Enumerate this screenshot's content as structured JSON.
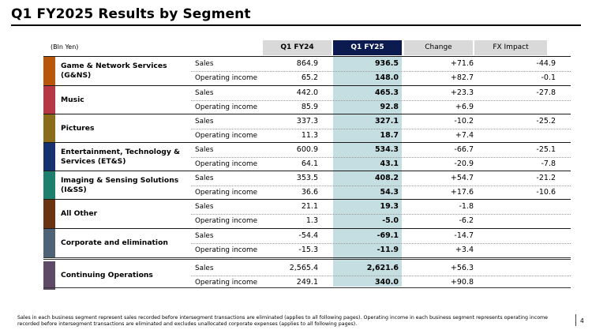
{
  "title": "Q1 FY2025 Results by Segment",
  "unit": "(Bln Yen)",
  "headers": {
    "fy24": "Q1 FY24",
    "fy25": "Q1 FY25",
    "change": "Change",
    "fx": "FX Impact"
  },
  "segments": [
    {
      "name": "Game & Network Services (G&NS)",
      "color": "#b8560b",
      "rows": [
        {
          "label": "Sales",
          "fy24": "864.9",
          "fy25": "936.5",
          "change": "+71.6",
          "fx": "-44.9"
        },
        {
          "label": "Operating income",
          "fy24": "65.2",
          "fy25": "148.0",
          "change": "+82.7",
          "fx": "-0.1"
        }
      ]
    },
    {
      "name": "Music",
      "color": "#b63746",
      "rows": [
        {
          "label": "Sales",
          "fy24": "442.0",
          "fy25": "465.3",
          "change": "+23.3",
          "fx": "-27.8"
        },
        {
          "label": "Operating income",
          "fy24": "85.9",
          "fy25": "92.8",
          "change": "+6.9",
          "fx": ""
        }
      ]
    },
    {
      "name": "Pictures",
      "color": "#8a6d1b",
      "rows": [
        {
          "label": "Sales",
          "fy24": "337.3",
          "fy25": "327.1",
          "change": "-10.2",
          "fx": "-25.2"
        },
        {
          "label": "Operating income",
          "fy24": "11.3",
          "fy25": "18.7",
          "change": "+7.4",
          "fx": ""
        }
      ]
    },
    {
      "name": "Entertainment, Technology & Services (ET&S)",
      "color": "#17306e",
      "rows": [
        {
          "label": "Sales",
          "fy24": "600.9",
          "fy25": "534.3",
          "change": "-66.7",
          "fx": "-25.1"
        },
        {
          "label": "Operating income",
          "fy24": "64.1",
          "fy25": "43.1",
          "change": "-20.9",
          "fx": "-7.8"
        }
      ]
    },
    {
      "name": "Imaging & Sensing Solutions (I&SS)",
      "color": "#1f7f6e",
      "rows": [
        {
          "label": "Sales",
          "fy24": "353.5",
          "fy25": "408.2",
          "change": "+54.7",
          "fx": "-21.2"
        },
        {
          "label": "Operating income",
          "fy24": "36.6",
          "fy25": "54.3",
          "change": "+17.6",
          "fx": "-10.6"
        }
      ]
    },
    {
      "name": "All Other",
      "color": "#6b3410",
      "rows": [
        {
          "label": "Sales",
          "fy24": "21.1",
          "fy25": "19.3",
          "change": "-1.8",
          "fx": ""
        },
        {
          "label": "Operating income",
          "fy24": "1.3",
          "fy25": "-5.0",
          "change": "-6.2",
          "fx": ""
        }
      ]
    },
    {
      "name": "Corporate and elimination",
      "color": "#4e6376",
      "rows": [
        {
          "label": "Sales",
          "fy24": "-54.4",
          "fy25": "-69.1",
          "change": "-14.7",
          "fx": ""
        },
        {
          "label": "Operating income",
          "fy24": "-15.3",
          "fy25": "-11.9",
          "change": "+3.4",
          "fx": ""
        }
      ]
    }
  ],
  "total": {
    "name": "Continuing Operations",
    "color": "#5e4a66",
    "rows": [
      {
        "label": "Sales",
        "fy24": "2,565.4",
        "fy25": "2,621.6",
        "change": "+56.3",
        "fx": ""
      },
      {
        "label": "Operating income",
        "fy24": "249.1",
        "fy25": "340.0",
        "change": "+90.8",
        "fx": ""
      }
    ]
  },
  "footnote": "Sales in each business segment represent sales recorded before intersegment transactions are eliminated (applies to all following pages). Operating income in each business segment represents operating income recorded before intersegment transactions are eliminated and excludes unallocated corporate expenses (applies to all following pages).",
  "page_number": "4"
}
